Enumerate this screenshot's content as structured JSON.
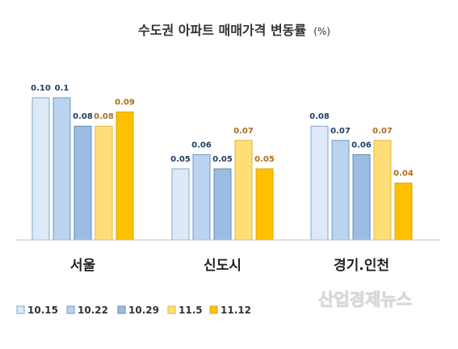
{
  "chart_data": {
    "type": "bar",
    "title": "수도권 아파트 매매가격 변동률",
    "unit": "(%)",
    "categories": [
      "서울",
      "신도시",
      "경기.인천"
    ],
    "series": [
      {
        "name": "10.15",
        "values": [
          0.1,
          0.05,
          0.08
        ],
        "labels": [
          "0.10",
          "0.05",
          "0.08"
        ],
        "fill": "#dde9f7",
        "stroke": "#7ea6cf",
        "label_color": "#1f3f63"
      },
      {
        "name": "10.22",
        "values": [
          0.1,
          0.06,
          0.07
        ],
        "labels": [
          "0.1",
          "0.06",
          "0.07"
        ],
        "fill": "#bad3ee",
        "stroke": "#6f98c4",
        "label_color": "#1f3f63"
      },
      {
        "name": "10.29",
        "values": [
          0.08,
          0.05,
          0.06
        ],
        "labels": [
          "0.08",
          "0.05",
          "0.06"
        ],
        "fill": "#9bbde3",
        "stroke": "#5f88b6",
        "label_color": "#1f3f63"
      },
      {
        "name": "11.5",
        "values": [
          0.08,
          0.07,
          0.07
        ],
        "labels": [
          "0.08",
          "0.07",
          "0.07"
        ],
        "fill": "#ffde78",
        "stroke": "#e0b43a",
        "label_color": "#b06a1a"
      },
      {
        "name": "11.12",
        "values": [
          0.09,
          0.05,
          0.04
        ],
        "labels": [
          "0.09",
          "0.05",
          "0.04"
        ],
        "fill": "#ffc000",
        "stroke": "#e0a500",
        "label_color": "#b06a1a"
      }
    ],
    "ylim": [
      0,
      0.1
    ],
    "grid": false,
    "legend_position": "bottom-left",
    "baseline_color": "#bfbfbf"
  },
  "watermark": "산업경제뉴스"
}
